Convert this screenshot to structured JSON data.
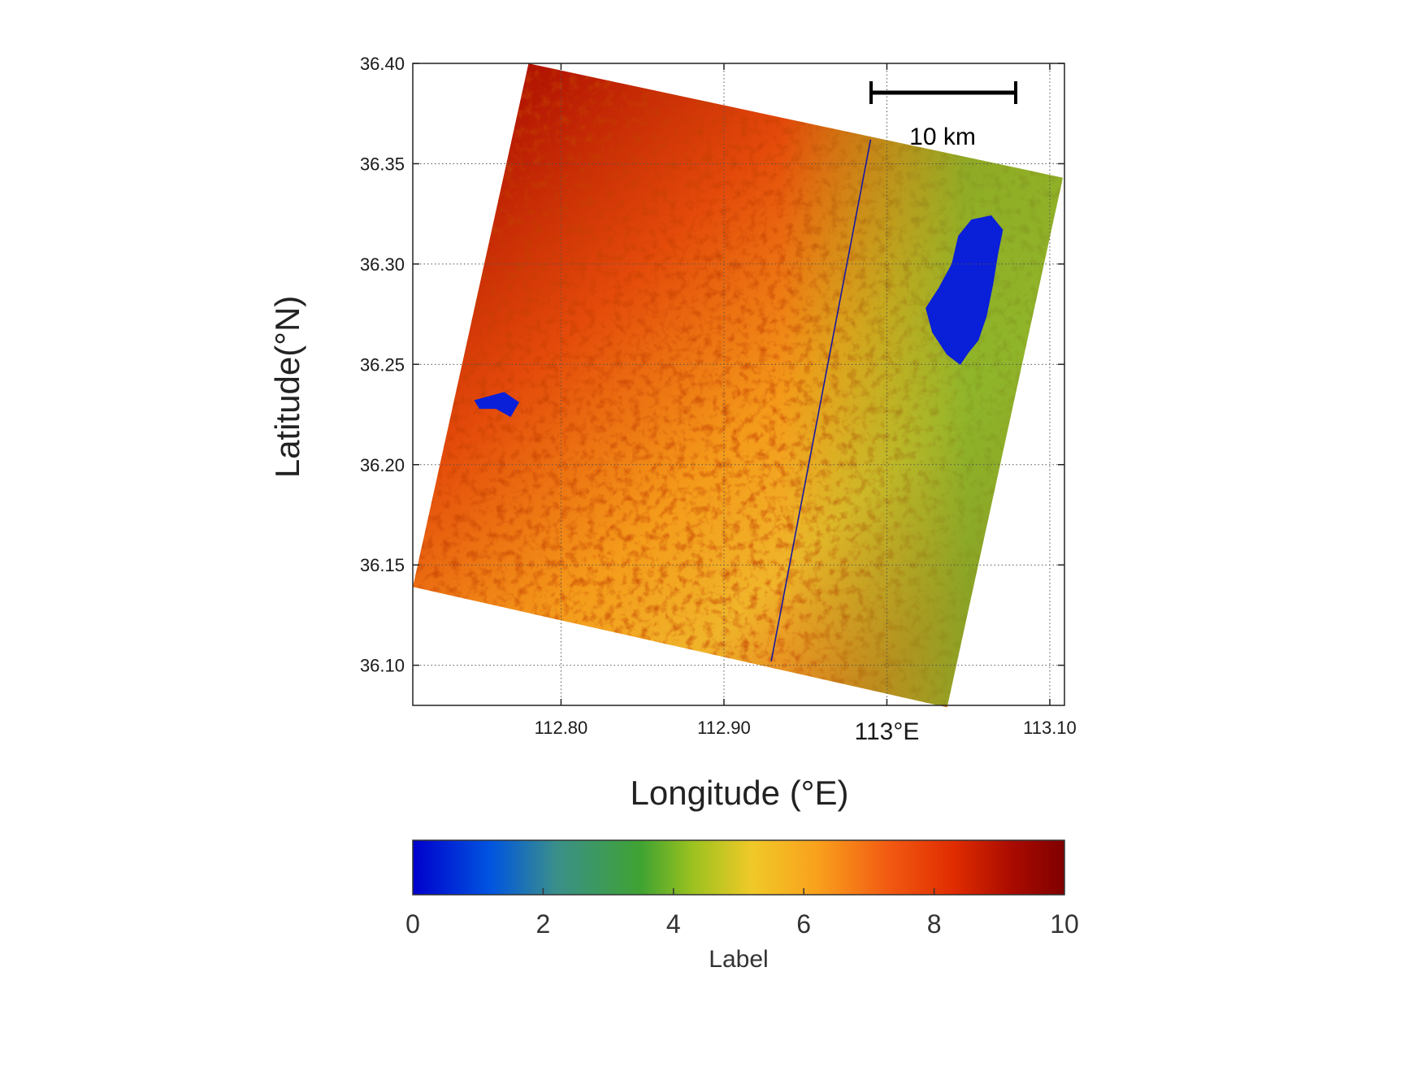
{
  "map": {
    "axes": {
      "x_label": "Longitude (°E)",
      "y_label": "Latitude(°N)",
      "x_range": [
        112.709,
        113.109
      ],
      "y_range": [
        36.08,
        36.4
      ],
      "x_ticks": [
        {
          "value": 112.8,
          "label": "112.80"
        },
        {
          "value": 112.9,
          "label": "112.90"
        },
        {
          "value": 113.0,
          "label": "113°E"
        },
        {
          "value": 113.1,
          "label": "113.10"
        }
      ],
      "y_ticks": [
        {
          "value": 36.1,
          "label": "36.10"
        },
        {
          "value": 36.15,
          "label": "36.15"
        },
        {
          "value": 36.2,
          "label": "36.20"
        },
        {
          "value": 36.25,
          "label": "36.25"
        },
        {
          "value": 36.3,
          "label": "36.30"
        },
        {
          "value": 36.35,
          "label": "36.35"
        },
        {
          "value": 36.4,
          "label": "36.40"
        }
      ],
      "grid": "dotted"
    },
    "scene_footprint": [
      {
        "lon": 112.78,
        "lat": 36.4
      },
      {
        "lon": 113.108,
        "lat": 36.343
      },
      {
        "lon": 113.037,
        "lat": 36.079
      },
      {
        "lon": 112.709,
        "lat": 36.139
      }
    ],
    "transect_line": [
      {
        "lon": 112.99,
        "lat": 36.362
      },
      {
        "lon": 112.929,
        "lat": 36.102
      }
    ],
    "water_bodies": [
      {
        "name": "",
        "outline": [
          {
            "lon": 113.044,
            "lat": 36.314
          },
          {
            "lon": 113.052,
            "lat": 36.322
          },
          {
            "lon": 113.064,
            "lat": 36.324
          },
          {
            "lon": 113.071,
            "lat": 36.317
          },
          {
            "lon": 113.068,
            "lat": 36.305
          },
          {
            "lon": 113.065,
            "lat": 36.29
          },
          {
            "lon": 113.061,
            "lat": 36.274
          },
          {
            "lon": 113.056,
            "lat": 36.262
          },
          {
            "lon": 113.05,
            "lat": 36.256
          },
          {
            "lon": 113.045,
            "lat": 36.25
          },
          {
            "lon": 113.037,
            "lat": 36.255
          },
          {
            "lon": 113.028,
            "lat": 36.266
          },
          {
            "lon": 113.024,
            "lat": 36.278
          },
          {
            "lon": 113.032,
            "lat": 36.288
          },
          {
            "lon": 113.04,
            "lat": 36.3
          }
        ]
      },
      {
        "name": "",
        "outline": [
          {
            "lon": 112.747,
            "lat": 36.232
          },
          {
            "lon": 112.765,
            "lat": 36.236
          },
          {
            "lon": 112.774,
            "lat": 36.231
          },
          {
            "lon": 112.769,
            "lat": 36.224
          },
          {
            "lon": 112.76,
            "lat": 36.228
          },
          {
            "lon": 112.75,
            "lat": 36.228
          }
        ]
      }
    ],
    "scale_bar": {
      "label": "10 km",
      "position": "top-right"
    }
  },
  "colorbar": {
    "label": "Label",
    "range": [
      0,
      10
    ],
    "ticks": [
      {
        "value": 0,
        "label": "0"
      },
      {
        "value": 2,
        "label": "2"
      },
      {
        "value": 4,
        "label": "4"
      },
      {
        "value": 6,
        "label": "6"
      },
      {
        "value": 8,
        "label": "8"
      },
      {
        "value": 10,
        "label": "10"
      }
    ],
    "colormap": [
      {
        "value": 0,
        "color": "#0000cc"
      },
      {
        "value": 1.2,
        "color": "#0055e0"
      },
      {
        "value": 2.2,
        "color": "#3a8f8a"
      },
      {
        "value": 3.5,
        "color": "#3fa332"
      },
      {
        "value": 4.3,
        "color": "#9cc21f"
      },
      {
        "value": 5.2,
        "color": "#f0c928"
      },
      {
        "value": 6.2,
        "color": "#f9a11c"
      },
      {
        "value": 7.3,
        "color": "#f25a12"
      },
      {
        "value": 8.3,
        "color": "#e02c00"
      },
      {
        "value": 9.2,
        "color": "#a90b00"
      },
      {
        "value": 10,
        "color": "#800000"
      }
    ]
  }
}
